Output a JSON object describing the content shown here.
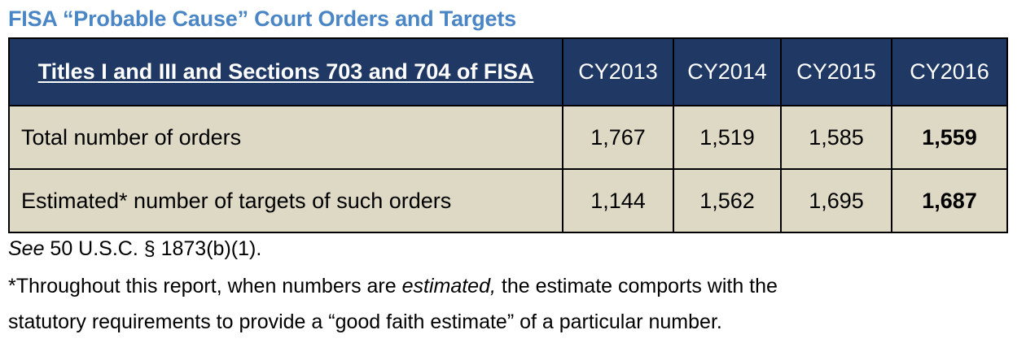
{
  "title": "FISA “Probable Cause” Court Orders and Targets",
  "table": {
    "row_header": "Titles I and III and Sections 703 and 704 of FISA",
    "columns": [
      "CY2013",
      "CY2014",
      "CY2015",
      "CY2016"
    ],
    "rows": [
      {
        "label": "Total number of orders",
        "values": [
          "1,767",
          "1,519",
          "1,585",
          "1,559"
        ]
      },
      {
        "label": "Estimated* number of targets of such orders",
        "values": [
          "1,144",
          "1,562",
          "1,695",
          "1,687"
        ]
      }
    ],
    "colors": {
      "header_bg": "#1f3864",
      "header_text": "#ffffff",
      "body_bg": "#ddd9c4",
      "title": "#4a86c5"
    }
  },
  "notes": {
    "see_italic": "See",
    "see_rest": " 50 U.S.C. § 1873(b)(1).",
    "footnote_part1": "*Throughout this report, when numbers are ",
    "footnote_italic": "estimated,",
    "footnote_part2": " the estimate comports with the",
    "footnote_line2": "statutory requirements to provide a “good faith estimate” of a particular number."
  }
}
